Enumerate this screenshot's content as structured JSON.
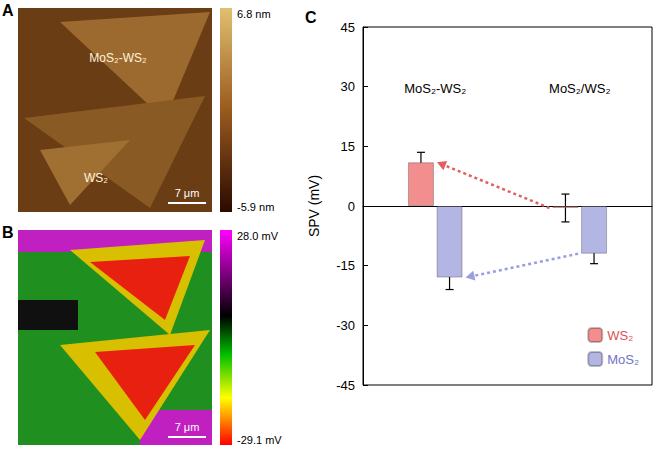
{
  "panels": [
    {
      "panel_label": "A",
      "texts": [
        "MoS₂-WS₂",
        "WS₂"
      ],
      "scale_bar": "7 μm",
      "colorbar_labels": [
        "6.8 nm",
        "-5.9 nm"
      ]
    },
    {
      "panel_label": "B",
      "scale_bar": "7 μm",
      "colorbar_labels": [
        "28.0 mV",
        "-29.1 mV"
      ]
    }
  ],
  "chart_data": {
    "panel_label": "C",
    "type": "bar",
    "y_label": "SPV (mV)",
    "categories": [
      "MoS₂-WS₂",
      "MoS₂/WS₂"
    ],
    "series": [
      {
        "name": "WS₂",
        "color": "#f28e8e",
        "values": [
          11,
          -0.5
        ],
        "errors": [
          2.5,
          3.5
        ]
      },
      {
        "name": "MoS₂",
        "color": "#b3b5e3",
        "values": [
          -18,
          -12
        ],
        "errors": [
          3,
          2.5
        ]
      }
    ],
    "ylim": [
      -45,
      45
    ],
    "yticks": [
      -45,
      -30,
      -15,
      0,
      15,
      30,
      45
    ],
    "legend": "lower right",
    "grid": false
  }
}
